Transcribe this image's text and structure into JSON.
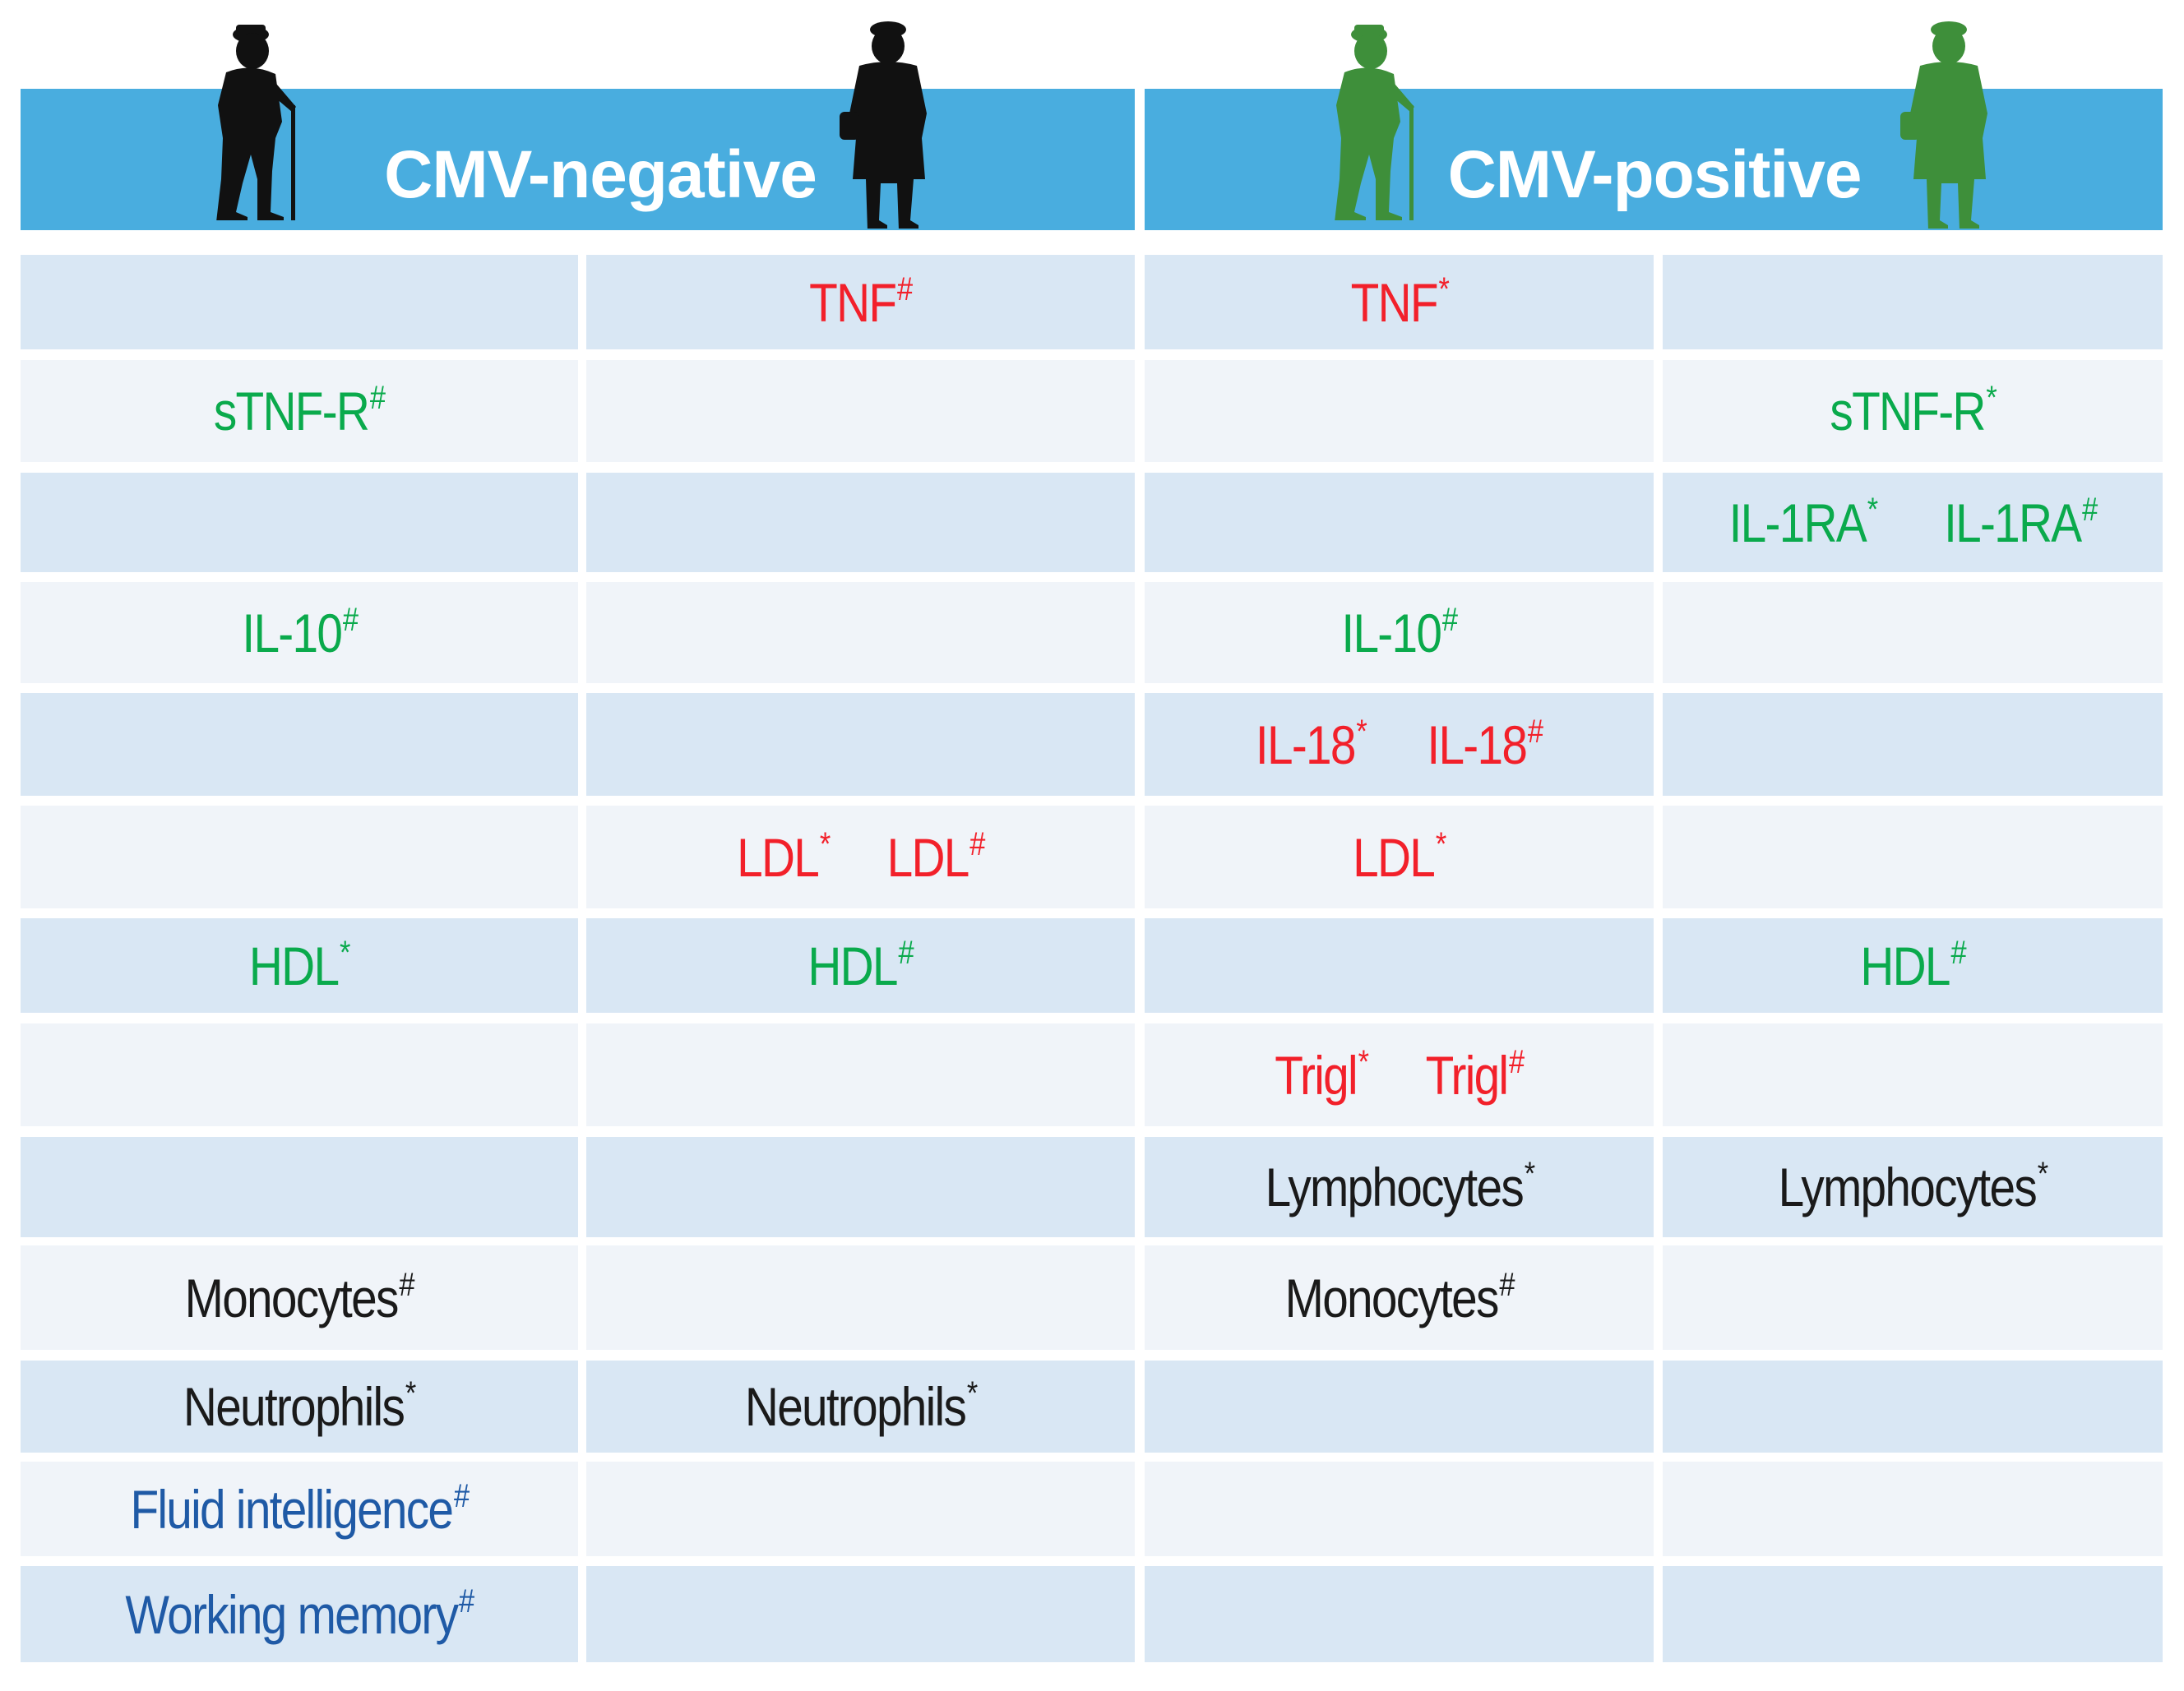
{
  "colors": {
    "header_bg": "#49ADDF",
    "band_row": "#D9E7F4",
    "plain_row": "#F0F4F9",
    "increase_red": "#F2202A",
    "decrease_green": "#0AAA4C",
    "cell_black": "#1a1a1a",
    "cognitive_blue": "#1F5AA6",
    "silhouette_neg": "#111111",
    "silhouette_pos": "#3E8F3A"
  },
  "header": {
    "cmv_negative": "CMV-negative",
    "cmv_positive": "CMV-positive",
    "icons": [
      "elderly-man-cane-icon",
      "elderly-woman-icon"
    ]
  },
  "rows": [
    {
      "cells": [
        [],
        [
          {
            "t": "TNF",
            "s": "#",
            "c": "red"
          }
        ],
        [
          {
            "t": "TNF",
            "s": "*",
            "c": "red"
          }
        ],
        []
      ]
    },
    {
      "cells": [
        [
          {
            "t": "sTNF-R",
            "s": "#",
            "c": "green"
          }
        ],
        [],
        [],
        [
          {
            "t": "sTNF-R",
            "s": "*",
            "c": "green"
          }
        ]
      ]
    },
    {
      "cells": [
        [],
        [],
        [],
        [
          {
            "t": "IL-1RA",
            "s": "*",
            "c": "green"
          },
          {
            "t": "IL-1RA",
            "s": "#",
            "c": "green"
          }
        ]
      ]
    },
    {
      "cells": [
        [
          {
            "t": "IL-10",
            "s": "#",
            "c": "green"
          }
        ],
        [],
        [
          {
            "t": "IL-10",
            "s": "#",
            "c": "green"
          }
        ],
        []
      ]
    },
    {
      "cells": [
        [],
        [],
        [
          {
            "t": "IL-18",
            "s": "*",
            "c": "red"
          },
          {
            "t": "IL-18",
            "s": "#",
            "c": "red"
          }
        ],
        []
      ]
    },
    {
      "cells": [
        [],
        [
          {
            "t": "LDL",
            "s": "*",
            "c": "red"
          },
          {
            "t": "LDL",
            "s": "#",
            "c": "red"
          }
        ],
        [
          {
            "t": "LDL",
            "s": "*",
            "c": "red"
          }
        ],
        []
      ]
    },
    {
      "cells": [
        [
          {
            "t": "HDL",
            "s": "*",
            "c": "green"
          }
        ],
        [
          {
            "t": "HDL",
            "s": "#",
            "c": "green"
          }
        ],
        [],
        [
          {
            "t": "HDL",
            "s": "#",
            "c": "green"
          }
        ]
      ]
    },
    {
      "cells": [
        [],
        [],
        [
          {
            "t": "Trigl",
            "s": "*",
            "c": "red"
          },
          {
            "t": "Trigl",
            "s": "#",
            "c": "red"
          }
        ],
        []
      ]
    },
    {
      "cells": [
        [],
        [],
        [
          {
            "t": "Lymphocytes",
            "s": "*",
            "c": "black"
          }
        ],
        [
          {
            "t": "Lymphocytes",
            "s": "*",
            "c": "black"
          }
        ]
      ]
    },
    {
      "cells": [
        [
          {
            "t": "Monocytes",
            "s": "#",
            "c": "black"
          }
        ],
        [],
        [
          {
            "t": "Monocytes",
            "s": "#",
            "c": "black"
          }
        ],
        []
      ]
    },
    {
      "cells": [
        [
          {
            "t": "Neutrophils",
            "s": "*",
            "c": "black"
          }
        ],
        [
          {
            "t": "Neutrophils",
            "s": "*",
            "c": "black"
          }
        ],
        [],
        []
      ]
    },
    {
      "cells": [
        [
          {
            "t": "Fluid intelligence",
            "s": "#",
            "c": "blue"
          }
        ],
        [],
        [],
        []
      ]
    },
    {
      "cells": [
        [
          {
            "t": "Working memory",
            "s": "#",
            "c": "blue"
          }
        ],
        [],
        [],
        []
      ]
    }
  ]
}
